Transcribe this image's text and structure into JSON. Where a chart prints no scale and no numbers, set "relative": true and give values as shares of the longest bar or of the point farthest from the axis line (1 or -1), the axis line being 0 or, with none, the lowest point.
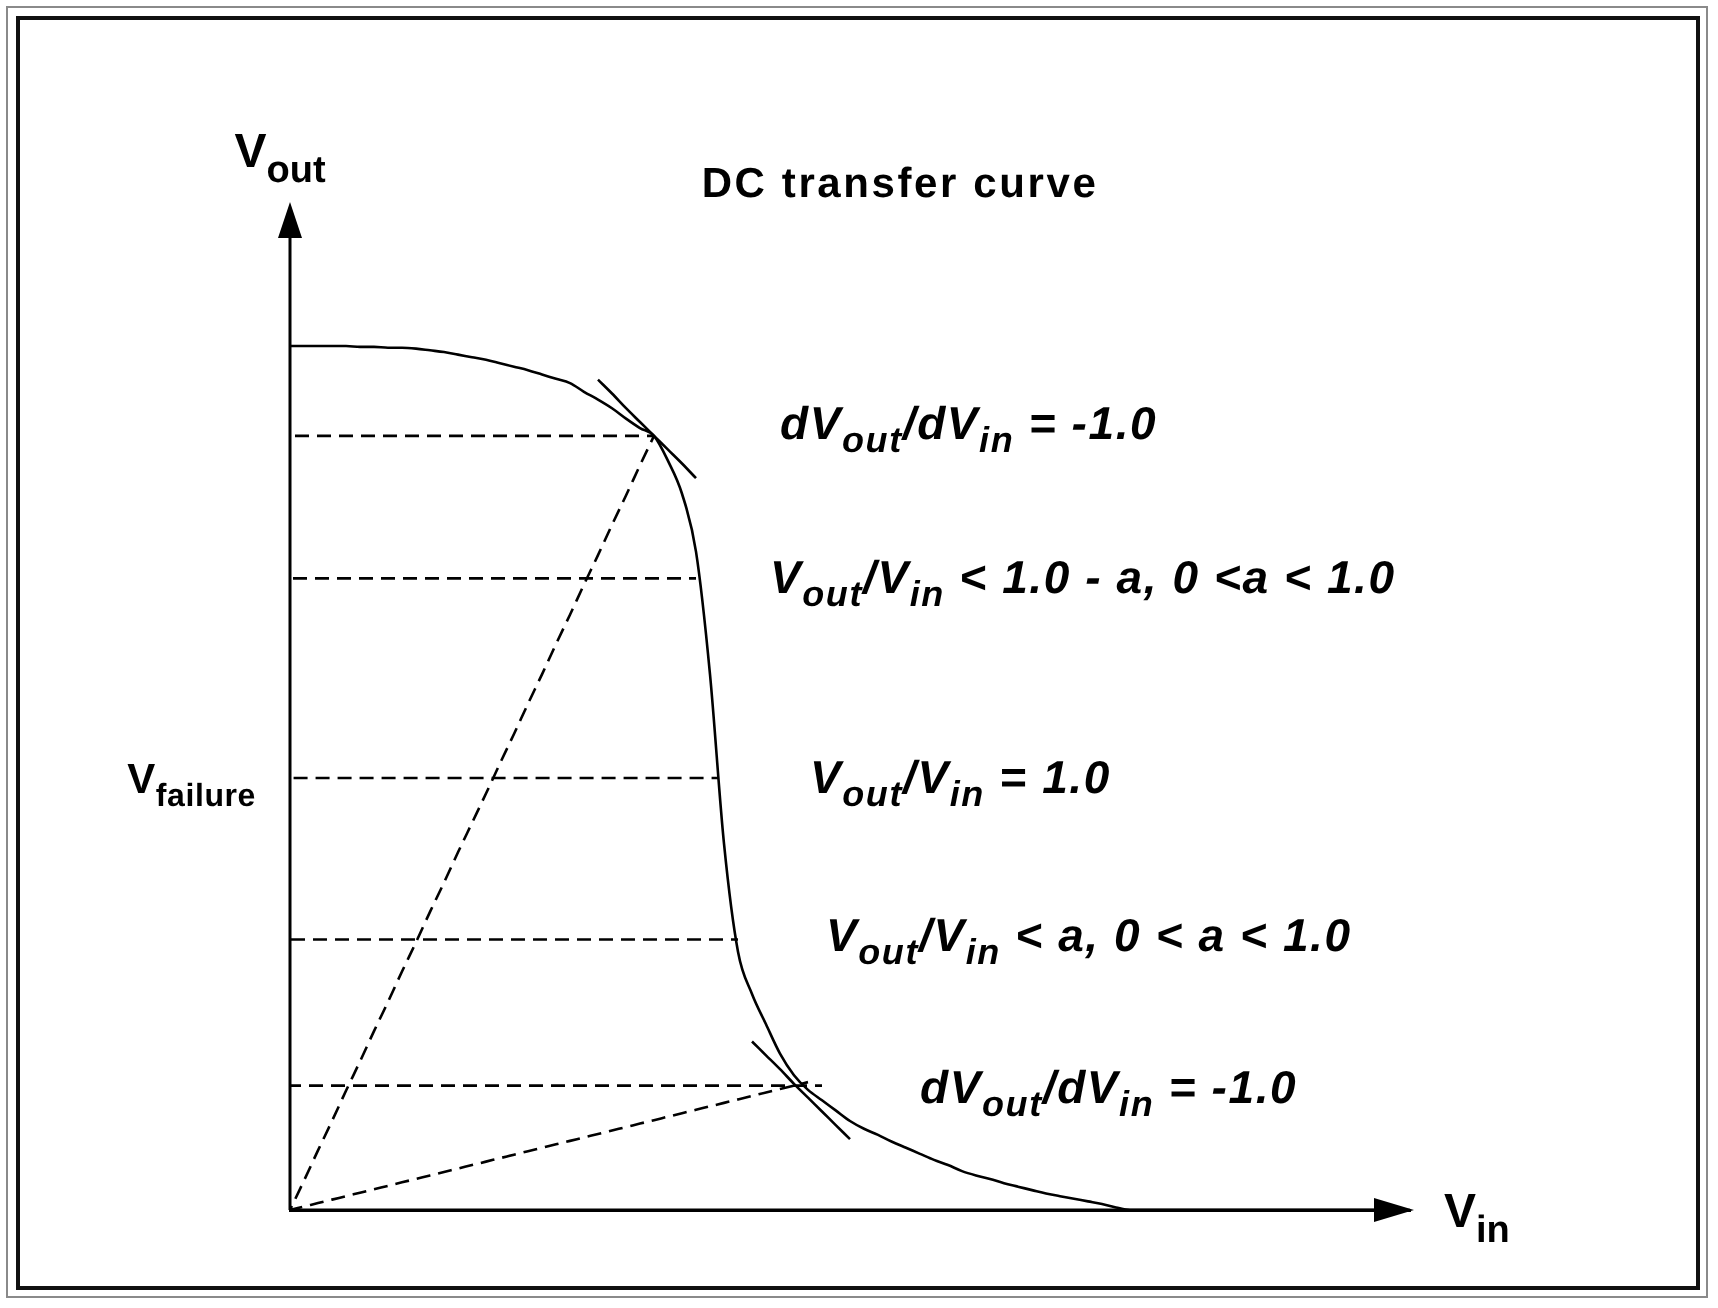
{
  "chart_data": {
    "type": "line",
    "title": "DC transfer curve",
    "xlabel": "V$_{in}$",
    "ylabel": "V$_{out}$",
    "relative": true,
    "marker": "none",
    "tick_labels": false,
    "categories": [
      null,
      null,
      null,
      null,
      null,
      null,
      null,
      null,
      null,
      null,
      null,
      null,
      null,
      null,
      null,
      null,
      null,
      null,
      null,
      null,
      null,
      null,
      null,
      null,
      null,
      null,
      null,
      null,
      null,
      null,
      null,
      null,
      null,
      null,
      null,
      null,
      null,
      null,
      null,
      null,
      null,
      null,
      null,
      null,
      null,
      null,
      null,
      null,
      null,
      null,
      null,
      null,
      null,
      null,
      null,
      null,
      null,
      null,
      null,
      null,
      null,
      null,
      null,
      null,
      null,
      null,
      null,
      null,
      null,
      null,
      null,
      null,
      null,
      null,
      null,
      null,
      null,
      null,
      null,
      null,
      null
    ],
    "series": [
      {
        "color": "#000000",
        "line_style": "solid",
        "values": [
          1.0,
          1.0,
          1.0,
          1.0,
          1.0,
          0.999,
          0.999,
          0.998,
          0.998,
          0.997,
          0.995,
          0.993,
          0.99,
          0.987,
          0.984,
          0.98,
          0.976,
          0.972,
          0.967,
          0.962,
          0.957,
          0.947,
          0.938,
          0.928,
          0.916,
          0.905,
          0.896,
          0.867,
          0.829,
          0.762,
          0.62,
          0.424,
          0.299,
          0.25,
          0.215,
          0.181,
          0.156,
          0.139,
          0.127,
          0.115,
          0.103,
          0.094,
          0.087,
          0.079,
          0.072,
          0.065,
          0.058,
          0.052,
          0.045,
          0.04,
          0.036,
          0.031,
          0.027,
          0.023,
          0.019,
          0.016,
          0.013,
          0.01,
          0.007,
          0.003,
          0,
          0,
          0,
          0,
          0,
          0,
          0,
          0,
          0,
          0,
          0,
          0,
          0,
          0,
          0,
          0,
          0,
          0,
          0,
          0,
          0
        ]
      },
      {
        "color": "#000000",
        "line_style": "dashed",
        "values": [
          0.896,
          0.896,
          0.896,
          0.896,
          0.896,
          0.896,
          0.896,
          0.896,
          0.896,
          0.896,
          0.896,
          0.896,
          0.896,
          0.896,
          0.896,
          0.896,
          0.896,
          0.896,
          0.896,
          0.896,
          0.896,
          0.896,
          0.896,
          0.896,
          0.896,
          0.896,
          0.896,
          null,
          null,
          null,
          null,
          null,
          null,
          null,
          null,
          null,
          null,
          null,
          null,
          null,
          null,
          null,
          null,
          null,
          null,
          null,
          null,
          null,
          null,
          null,
          null,
          null,
          null,
          null,
          null,
          null,
          null,
          null,
          null,
          null,
          null,
          null,
          null,
          null,
          null,
          null,
          null,
          null,
          null,
          null,
          null,
          null,
          null,
          null,
          null,
          null,
          null,
          null,
          null,
          null,
          null
        ]
      },
      {
        "color": "#000000",
        "line_style": "dashed",
        "values": [
          0.731,
          0.731,
          0.731,
          0.731,
          0.731,
          0.731,
          0.731,
          0.731,
          0.731,
          0.731,
          0.731,
          0.731,
          0.731,
          0.731,
          0.731,
          0.731,
          0.731,
          0.731,
          0.731,
          0.731,
          0.731,
          0.731,
          0.731,
          0.731,
          0.731,
          0.731,
          0.731,
          0.731,
          0.731,
          0.731,
          null,
          null,
          null,
          null,
          null,
          null,
          null,
          null,
          null,
          null,
          null,
          null,
          null,
          null,
          null,
          null,
          null,
          null,
          null,
          null,
          null,
          null,
          null,
          null,
          null,
          null,
          null,
          null,
          null,
          null,
          null,
          null,
          null,
          null,
          null,
          null,
          null,
          null,
          null,
          null,
          null,
          null,
          null,
          null,
          null,
          null,
          null,
          null,
          null,
          null,
          null
        ]
      },
      {
        "color": "#000000",
        "line_style": "dashed",
        "values": [
          0.313,
          0.313,
          0.313,
          0.313,
          0.313,
          0.313,
          0.313,
          0.313,
          0.313,
          0.313,
          0.313,
          0.313,
          0.313,
          0.313,
          0.313,
          0.313,
          0.313,
          0.313,
          0.313,
          0.313,
          0.313,
          0.313,
          0.313,
          0.313,
          0.313,
          0.313,
          0.313,
          0.313,
          0.313,
          0.313,
          0.313,
          0.313,
          0.313,
          null,
          null,
          null,
          null,
          null,
          null,
          null,
          null,
          null,
          null,
          null,
          null,
          null,
          null,
          null,
          null,
          null,
          null,
          null,
          null,
          null,
          null,
          null,
          null,
          null,
          null,
          null,
          null,
          null,
          null,
          null,
          null,
          null,
          null,
          null,
          null,
          null,
          null,
          null,
          null,
          null,
          null,
          null,
          null,
          null,
          null,
          null,
          null
        ]
      },
      {
        "color": "#000000",
        "line_style": "dashed",
        "values": [
          0.144,
          0.144,
          0.144,
          0.144,
          0.144,
          0.144,
          0.144,
          0.144,
          0.144,
          0.144,
          0.144,
          0.144,
          0.144,
          0.144,
          0.144,
          0.144,
          0.144,
          0.144,
          0.144,
          0.144,
          0.144,
          0.144,
          0.144,
          0.144,
          0.144,
          0.144,
          0.144,
          0.144,
          0.144,
          0.144,
          0.144,
          0.144,
          0.144,
          0.144,
          0.144,
          0.144,
          0.144,
          0.144,
          0.144,
          null,
          null,
          null,
          null,
          null,
          null,
          null,
          null,
          null,
          null,
          null,
          null,
          null,
          null,
          null,
          null,
          null,
          null,
          null,
          null,
          null,
          null,
          null,
          null,
          null,
          null,
          null,
          null,
          null,
          null,
          null,
          null,
          null,
          null,
          null,
          null,
          null,
          null,
          null,
          null,
          null,
          null
        ]
      },
      {
        "color": "#000000",
        "line_style": "dashed",
        "values": [
          0,
          0.034,
          0.069,
          0.103,
          0.138,
          0.172,
          0.207,
          0.241,
          0.276,
          0.31,
          0.345,
          0.379,
          0.414,
          0.448,
          0.482,
          0.517,
          0.551,
          0.586,
          0.62,
          0.655,
          0.689,
          0.724,
          0.758,
          0.793,
          0.827,
          0.862,
          0.896,
          null,
          null,
          null,
          null,
          null,
          null,
          null,
          null,
          null,
          null,
          null,
          null,
          null,
          null,
          null,
          null,
          null,
          null,
          null,
          null,
          null,
          null,
          null,
          null,
          null,
          null,
          null,
          null,
          null,
          null,
          null,
          null,
          null,
          null,
          null,
          null,
          null,
          null,
          null,
          null,
          null,
          null,
          null,
          null,
          null,
          null,
          null,
          null,
          null,
          null,
          null,
          null,
          null,
          null
        ]
      },
      {
        "color": "#000000",
        "line_style": "dashed",
        "values": [
          0,
          0.004,
          0.008,
          0.012,
          0.016,
          0.02,
          0.024,
          0.028,
          0.032,
          0.036,
          0.04,
          0.044,
          0.048,
          0.052,
          0.056,
          0.06,
          0.064,
          0.068,
          0.072,
          0.076,
          0.08,
          0.084,
          0.088,
          0.092,
          0.096,
          0.1,
          0.104,
          0.108,
          0.112,
          0.116,
          0.12,
          0.124,
          0.128,
          0.132,
          0.136,
          0.14,
          0.144,
          0.148,
          null,
          null,
          null,
          null,
          null,
          null,
          null,
          null,
          null,
          null,
          null,
          null,
          null,
          null,
          null,
          null,
          null,
          null,
          null,
          null,
          null,
          null,
          null,
          null,
          null,
          null,
          null,
          null,
          null,
          null,
          null,
          null,
          null,
          null,
          null,
          null,
          null,
          null,
          null,
          null,
          null,
          null,
          null
        ]
      },
      {
        "color": "#000000",
        "line_style": "solid",
        "values": [
          null,
          null,
          null,
          null,
          null,
          null,
          null,
          null,
          null,
          null,
          null,
          null,
          null,
          null,
          null,
          null,
          null,
          null,
          null,
          null,
          null,
          null,
          0.961,
          0.945,
          0.928,
          0.912,
          0.896,
          0.88,
          0.864,
          0.847,
          null,
          null,
          null,
          null,
          null,
          null,
          null,
          null,
          null,
          null,
          null,
          null,
          null,
          null,
          null,
          null,
          null,
          null,
          null,
          null,
          null,
          null,
          null,
          null,
          null,
          null,
          null,
          null,
          null,
          null,
          null,
          null,
          null,
          null,
          null,
          null,
          null,
          null,
          null,
          null,
          null,
          null,
          null,
          null,
          null,
          null,
          null,
          null,
          null,
          null,
          null
        ]
      },
      {
        "color": "#000000",
        "line_style": "solid",
        "values": [
          null,
          null,
          null,
          null,
          null,
          null,
          null,
          null,
          null,
          null,
          null,
          null,
          null,
          null,
          null,
          null,
          null,
          null,
          null,
          null,
          null,
          null,
          null,
          null,
          null,
          null,
          null,
          null,
          null,
          null,
          null,
          null,
          null,
          0.195,
          0.179,
          0.163,
          0.146,
          0.13,
          0.114,
          0.098,
          0.082,
          null,
          null,
          null,
          null,
          null,
          null,
          null,
          null,
          null,
          null,
          null,
          null,
          null,
          null,
          null,
          null,
          null,
          null,
          null,
          null,
          null,
          null,
          null,
          null,
          null,
          null,
          null,
          null,
          null,
          null,
          null,
          null,
          null,
          null,
          null,
          null,
          null,
          null,
          null,
          null
        ]
      }
    ],
    "ref_lines": [
      {
        "axis": "y",
        "value": 0.5,
        "label": "V$_{failure}$",
        "line_style": "dashed",
        "color": "#000000"
      }
    ],
    "annotations": [
      "dV$_{out}$/dV$_{in}$ = -1.0",
      "V$_{out}$/V$_{in}$ < 1.0 - a, 0 <a < 1.0",
      "V$_{out}$/V$_{in}$ = 1.0",
      "V$_{out}$/V$_{in}$ < a, 0 < a < 1.0",
      "dV$_{out}$/dV$_{in}$ = -1.0"
    ]
  }
}
